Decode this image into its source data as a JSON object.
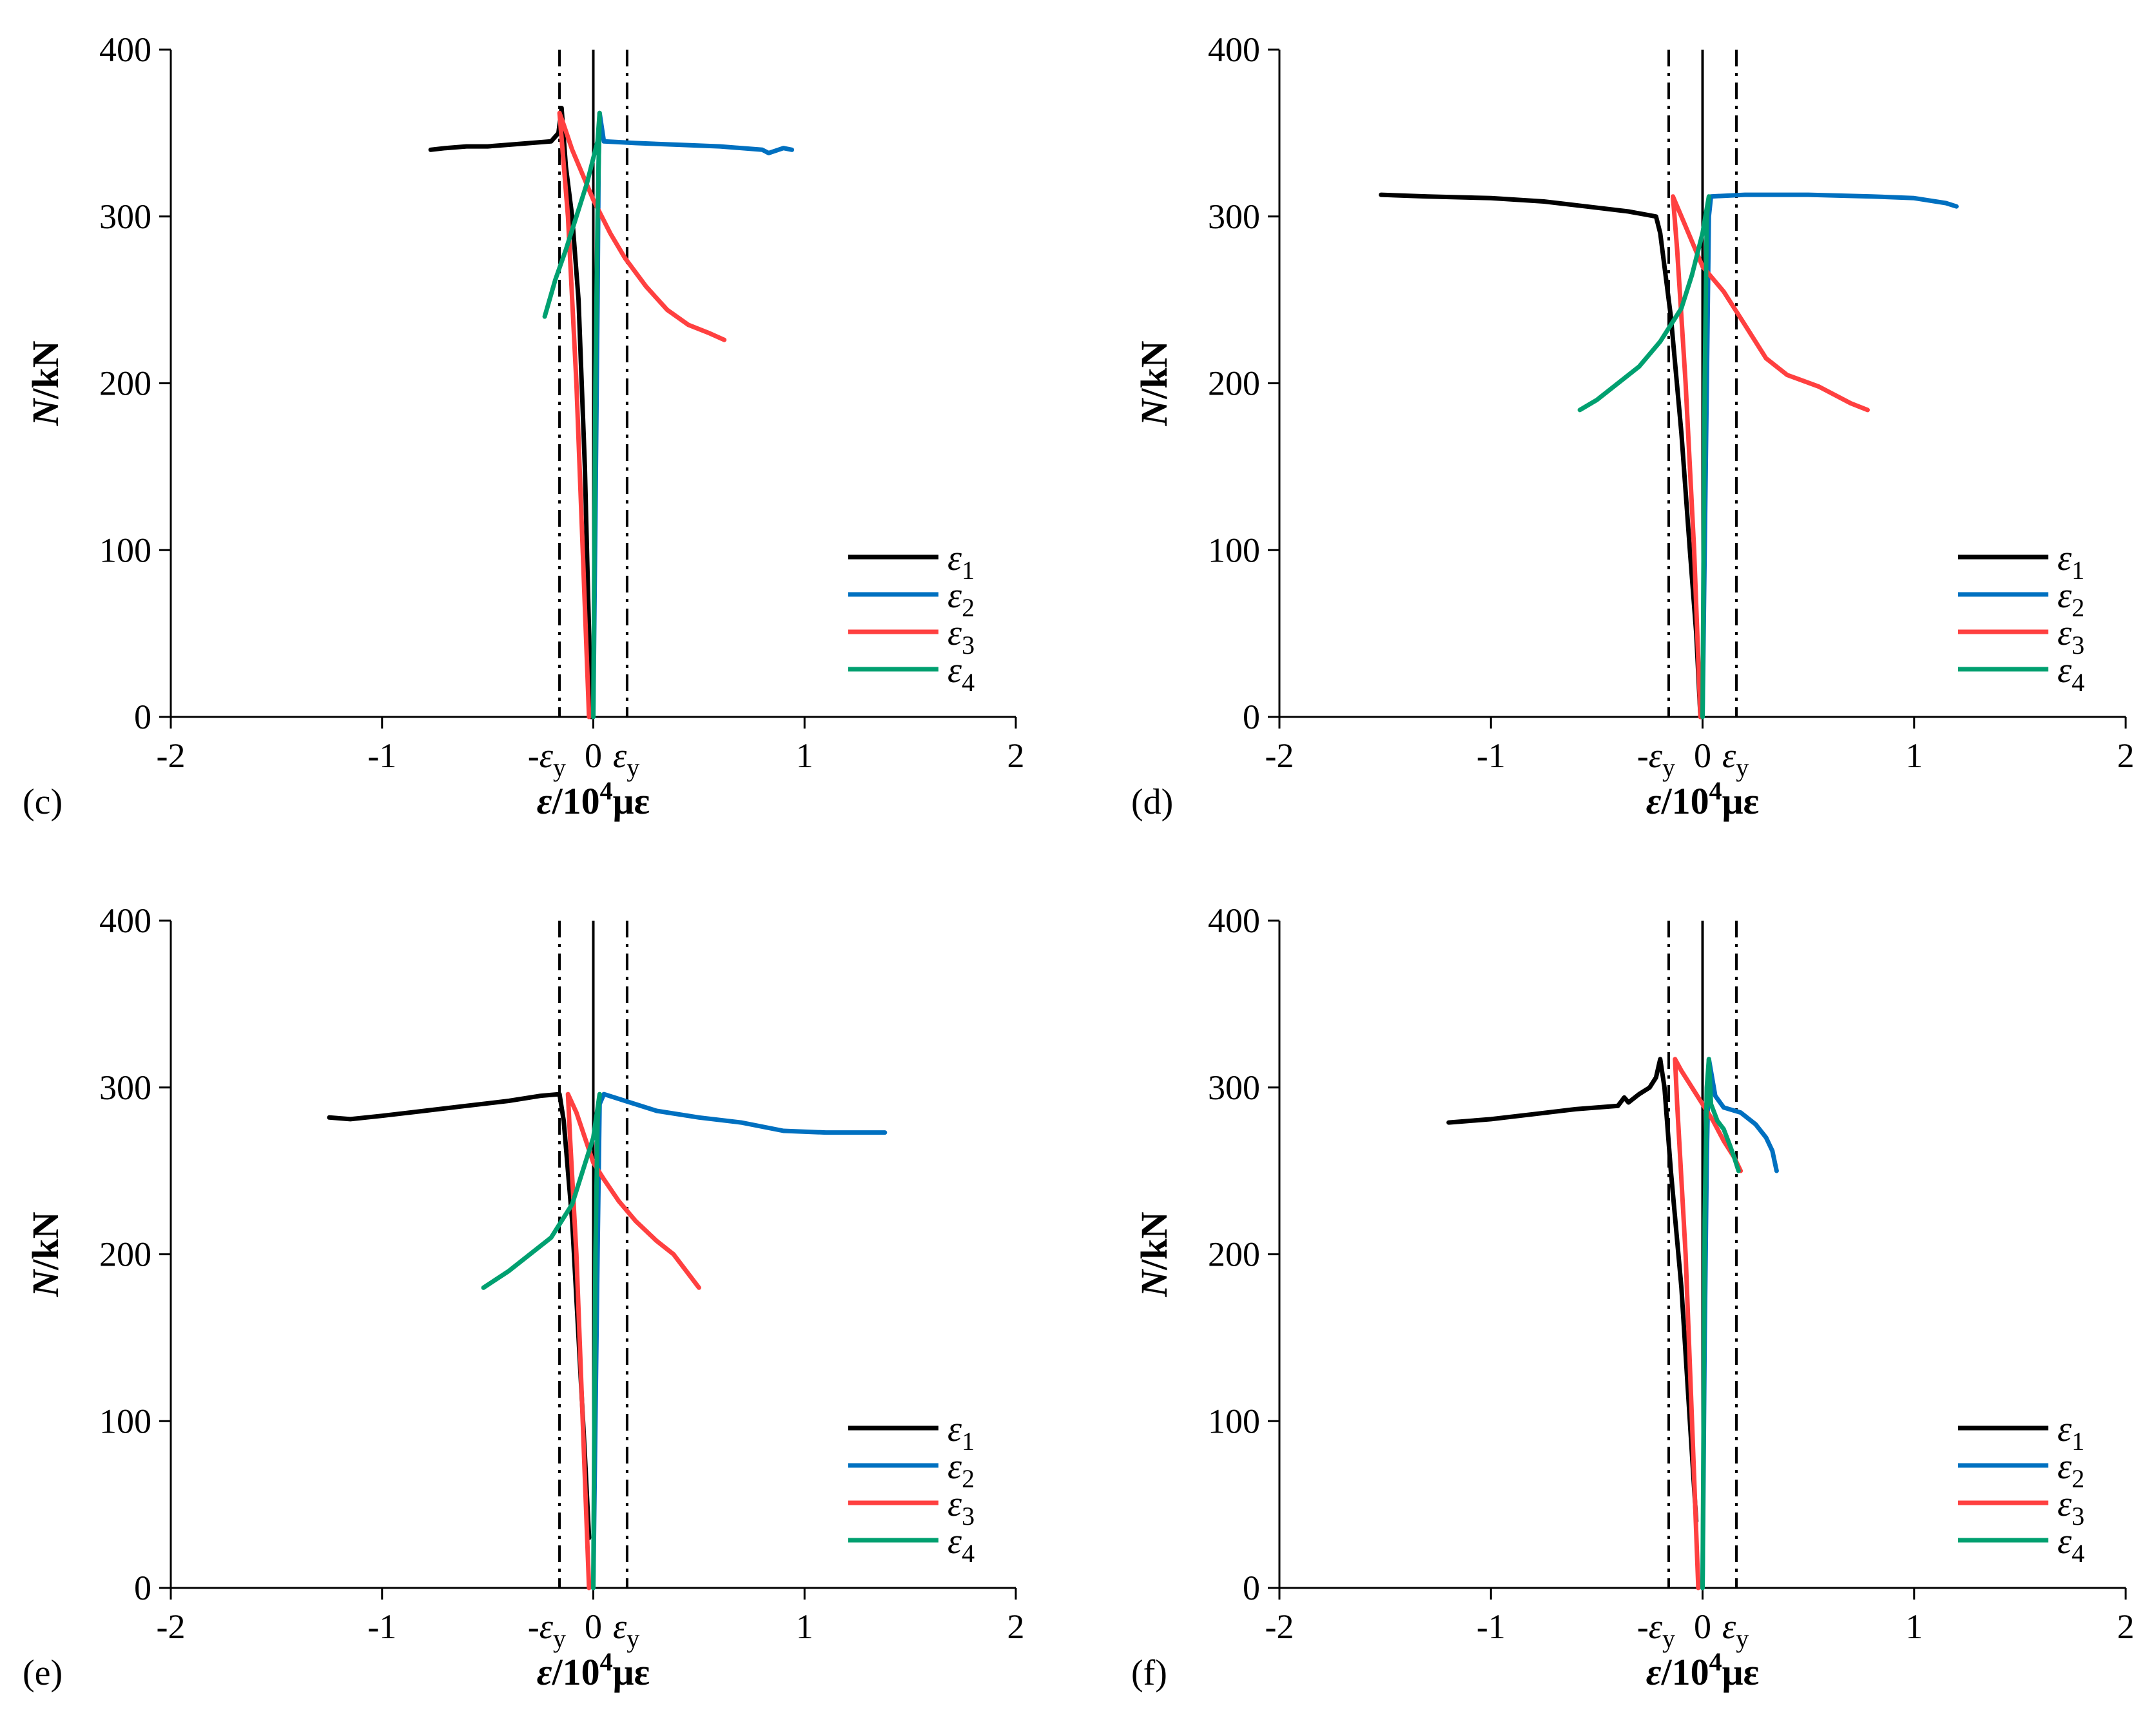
{
  "figure": {
    "panels": [
      "c",
      "d",
      "e",
      "f"
    ]
  },
  "chart_data": [
    {
      "type": "line",
      "panel_label": "(c)",
      "xlabel_symbol": "ε",
      "xlabel_unit": "/10",
      "xlabel_exp": "4",
      "xlabel_tail": "με",
      "ylabel_symbol": "N",
      "ylabel_unit": "/kN",
      "xlim": [
        -2,
        2
      ],
      "ylim": [
        0,
        400
      ],
      "xticks": [
        -2,
        -1,
        1,
        2
      ],
      "yticks": [
        0,
        100,
        200,
        300,
        400
      ],
      "zero_label": "0",
      "yield_strain": 0.16,
      "yield_labels": {
        "neg_prefix": "-",
        "sym": "ε",
        "sub": "y"
      },
      "series": [
        {
          "name": "ε1",
          "sym": "ε",
          "sub": "1",
          "color": "#000000",
          "points": [
            [
              -0.77,
              340
            ],
            [
              -0.7,
              341
            ],
            [
              -0.6,
              342
            ],
            [
              -0.5,
              342
            ],
            [
              -0.4,
              343
            ],
            [
              -0.3,
              344
            ],
            [
              -0.2,
              345
            ],
            [
              -0.165,
              350
            ],
            [
              -0.15,
              365
            ],
            [
              -0.13,
              330
            ],
            [
              -0.1,
              300
            ],
            [
              -0.07,
              250
            ],
            [
              -0.04,
              150
            ],
            [
              -0.02,
              50
            ],
            [
              -0.01,
              0
            ]
          ]
        },
        {
          "name": "ε2",
          "sym": "ε",
          "sub": "2",
          "color": "#0070C0",
          "points": [
            [
              0.0,
              0
            ],
            [
              0.01,
              120
            ],
            [
              0.02,
              250
            ],
            [
              0.025,
              330
            ],
            [
              0.03,
              362
            ],
            [
              0.05,
              345
            ],
            [
              0.2,
              344
            ],
            [
              0.4,
              343
            ],
            [
              0.6,
              342
            ],
            [
              0.8,
              340
            ],
            [
              0.83,
              338
            ],
            [
              0.9,
              341
            ],
            [
              0.94,
              340
            ]
          ]
        },
        {
          "name": "ε3",
          "sym": "ε",
          "sub": "3",
          "color": "#FF4040",
          "points": [
            [
              -0.02,
              0
            ],
            [
              -0.05,
              100
            ],
            [
              -0.08,
              200
            ],
            [
              -0.12,
              300
            ],
            [
              -0.16,
              362
            ],
            [
              -0.14,
              355
            ],
            [
              -0.1,
              340
            ],
            [
              -0.05,
              325
            ],
            [
              0.0,
              310
            ],
            [
              0.08,
              290
            ],
            [
              0.15,
              275
            ],
            [
              0.25,
              258
            ],
            [
              0.35,
              244
            ],
            [
              0.45,
              235
            ],
            [
              0.55,
              230
            ],
            [
              0.62,
              226
            ]
          ]
        },
        {
          "name": "ε4",
          "sym": "ε",
          "sub": "4",
          "color": "#00A070",
          "points": [
            [
              0.0,
              0
            ],
            [
              0.005,
              100
            ],
            [
              0.01,
              200
            ],
            [
              0.02,
              300
            ],
            [
              0.03,
              362
            ],
            [
              0.02,
              345
            ],
            [
              -0.03,
              320
            ],
            [
              -0.08,
              300
            ],
            [
              -0.13,
              280
            ],
            [
              -0.18,
              262
            ],
            [
              -0.23,
              240
            ]
          ]
        }
      ]
    },
    {
      "type": "line",
      "panel_label": "(d)",
      "xlabel_symbol": "ε",
      "xlabel_unit": "/10",
      "xlabel_exp": "4",
      "xlabel_tail": "με",
      "ylabel_symbol": "N",
      "ylabel_unit": "/kN",
      "xlim": [
        -2,
        2
      ],
      "ylim": [
        0,
        400
      ],
      "xticks": [
        -2,
        -1,
        1,
        2
      ],
      "yticks": [
        0,
        100,
        200,
        300,
        400
      ],
      "zero_label": "0",
      "yield_strain": 0.16,
      "yield_labels": {
        "neg_prefix": "-",
        "sym": "ε",
        "sub": "y"
      },
      "series": [
        {
          "name": "ε1",
          "sym": "ε",
          "sub": "1",
          "color": "#000000",
          "points": [
            [
              -1.52,
              313
            ],
            [
              -1.3,
              312
            ],
            [
              -1.0,
              311
            ],
            [
              -0.75,
              309
            ],
            [
              -0.55,
              306
            ],
            [
              -0.35,
              303
            ],
            [
              -0.22,
              300
            ],
            [
              -0.2,
              290
            ],
            [
              -0.15,
              240
            ],
            [
              -0.1,
              170
            ],
            [
              -0.06,
              100
            ],
            [
              -0.03,
              50
            ],
            [
              -0.01,
              0
            ]
          ]
        },
        {
          "name": "ε2",
          "sym": "ε",
          "sub": "2",
          "color": "#0070C0",
          "points": [
            [
              0.0,
              0
            ],
            [
              0.01,
              100
            ],
            [
              0.02,
              200
            ],
            [
              0.03,
              300
            ],
            [
              0.04,
              312
            ],
            [
              0.2,
              313
            ],
            [
              0.5,
              313
            ],
            [
              0.8,
              312
            ],
            [
              1.0,
              311
            ],
            [
              1.15,
              308
            ],
            [
              1.2,
              306
            ]
          ]
        },
        {
          "name": "ε3",
          "sym": "ε",
          "sub": "3",
          "color": "#FF4040",
          "points": [
            [
              -0.01,
              0
            ],
            [
              -0.04,
              100
            ],
            [
              -0.08,
              200
            ],
            [
              -0.12,
              280
            ],
            [
              -0.14,
              312
            ],
            [
              -0.1,
              300
            ],
            [
              -0.05,
              285
            ],
            [
              0.0,
              270
            ],
            [
              0.1,
              255
            ],
            [
              0.2,
              235
            ],
            [
              0.3,
              215
            ],
            [
              0.4,
              205
            ],
            [
              0.55,
              198
            ],
            [
              0.7,
              188
            ],
            [
              0.78,
              184
            ]
          ]
        },
        {
          "name": "ε4",
          "sym": "ε",
          "sub": "4",
          "color": "#00A070",
          "points": [
            [
              0.0,
              0
            ],
            [
              0.005,
              100
            ],
            [
              0.01,
              200
            ],
            [
              0.02,
              300
            ],
            [
              0.03,
              312
            ],
            [
              0.0,
              290
            ],
            [
              -0.05,
              265
            ],
            [
              -0.1,
              245
            ],
            [
              -0.2,
              225
            ],
            [
              -0.3,
              210
            ],
            [
              -0.4,
              200
            ],
            [
              -0.5,
              190
            ],
            [
              -0.58,
              184
            ]
          ]
        }
      ]
    },
    {
      "type": "line",
      "panel_label": "(e)",
      "xlabel_symbol": "ε",
      "xlabel_unit": "/10",
      "xlabel_exp": "4",
      "xlabel_tail": "με",
      "ylabel_symbol": "N",
      "ylabel_unit": "/kN",
      "xlim": [
        -2,
        2
      ],
      "ylim": [
        0,
        400
      ],
      "xticks": [
        -2,
        -1,
        1,
        2
      ],
      "yticks": [
        0,
        100,
        200,
        300,
        400
      ],
      "zero_label": "0",
      "yield_strain": 0.16,
      "yield_labels": {
        "neg_prefix": "-",
        "sym": "ε",
        "sub": "y"
      },
      "series": [
        {
          "name": "ε1",
          "sym": "ε",
          "sub": "1",
          "color": "#000000",
          "points": [
            [
              -1.25,
              282
            ],
            [
              -1.15,
              281
            ],
            [
              -1.0,
              283
            ],
            [
              -0.8,
              286
            ],
            [
              -0.6,
              289
            ],
            [
              -0.4,
              292
            ],
            [
              -0.25,
              295
            ],
            [
              -0.16,
              296
            ],
            [
              -0.14,
              280
            ],
            [
              -0.1,
              220
            ],
            [
              -0.07,
              150
            ],
            [
              -0.04,
              80
            ],
            [
              -0.02,
              30
            ]
          ]
        },
        {
          "name": "ε2",
          "sym": "ε",
          "sub": "2",
          "color": "#0070C0",
          "points": [
            [
              0.0,
              0
            ],
            [
              0.01,
              100
            ],
            [
              0.02,
              200
            ],
            [
              0.03,
              290
            ],
            [
              0.05,
              296
            ],
            [
              0.15,
              292
            ],
            [
              0.3,
              286
            ],
            [
              0.5,
              282
            ],
            [
              0.7,
              279
            ],
            [
              0.9,
              274
            ],
            [
              1.1,
              273
            ],
            [
              1.38,
              273
            ]
          ]
        },
        {
          "name": "ε3",
          "sym": "ε",
          "sub": "3",
          "color": "#FF4040",
          "points": [
            [
              -0.02,
              0
            ],
            [
              -0.05,
              100
            ],
            [
              -0.08,
              200
            ],
            [
              -0.11,
              270
            ],
            [
              -0.12,
              296
            ],
            [
              -0.08,
              285
            ],
            [
              -0.04,
              270
            ],
            [
              0.0,
              255
            ],
            [
              0.05,
              245
            ],
            [
              0.12,
              232
            ],
            [
              0.2,
              220
            ],
            [
              0.3,
              208
            ],
            [
              0.38,
              200
            ],
            [
              0.44,
              190
            ],
            [
              0.5,
              180
            ]
          ]
        },
        {
          "name": "ε4",
          "sym": "ε",
          "sub": "4",
          "color": "#00A070",
          "points": [
            [
              0.0,
              0
            ],
            [
              0.005,
              100
            ],
            [
              0.01,
              200
            ],
            [
              0.02,
              280
            ],
            [
              0.03,
              296
            ],
            [
              0.0,
              270
            ],
            [
              -0.05,
              250
            ],
            [
              -0.1,
              230
            ],
            [
              -0.2,
              210
            ],
            [
              -0.3,
              200
            ],
            [
              -0.4,
              190
            ],
            [
              -0.52,
              180
            ]
          ]
        }
      ]
    },
    {
      "type": "line",
      "panel_label": "(f)",
      "xlabel_symbol": "ε",
      "xlabel_unit": "/10",
      "xlabel_exp": "4",
      "xlabel_tail": "με",
      "ylabel_symbol": "N",
      "ylabel_unit": "/kN",
      "xlim": [
        -2,
        2
      ],
      "ylim": [
        0,
        400
      ],
      "xticks": [
        -2,
        -1,
        1,
        2
      ],
      "yticks": [
        0,
        100,
        200,
        300,
        400
      ],
      "zero_label": "0",
      "yield_strain": 0.16,
      "yield_labels": {
        "neg_prefix": "-",
        "sym": "ε",
        "sub": "y"
      },
      "series": [
        {
          "name": "ε1",
          "sym": "ε",
          "sub": "1",
          "color": "#000000",
          "points": [
            [
              -1.2,
              279
            ],
            [
              -1.0,
              281
            ],
            [
              -0.8,
              284
            ],
            [
              -0.6,
              287
            ],
            [
              -0.4,
              289
            ],
            [
              -0.37,
              294
            ],
            [
              -0.35,
              291
            ],
            [
              -0.3,
              296
            ],
            [
              -0.25,
              300
            ],
            [
              -0.22,
              306
            ],
            [
              -0.2,
              317
            ],
            [
              -0.18,
              300
            ],
            [
              -0.15,
              250
            ],
            [
              -0.1,
              180
            ],
            [
              -0.06,
              100
            ],
            [
              -0.03,
              40
            ]
          ]
        },
        {
          "name": "ε2",
          "sym": "ε",
          "sub": "2",
          "color": "#0070C0",
          "points": [
            [
              0.0,
              0
            ],
            [
              0.01,
              150
            ],
            [
              0.02,
              260
            ],
            [
              0.03,
              317
            ],
            [
              0.06,
              295
            ],
            [
              0.1,
              288
            ],
            [
              0.18,
              285
            ],
            [
              0.25,
              278
            ],
            [
              0.3,
              270
            ],
            [
              0.33,
              262
            ],
            [
              0.35,
              250
            ]
          ]
        },
        {
          "name": "ε3",
          "sym": "ε",
          "sub": "3",
          "color": "#FF4040",
          "points": [
            [
              -0.02,
              0
            ],
            [
              -0.05,
              100
            ],
            [
              -0.08,
              200
            ],
            [
              -0.12,
              290
            ],
            [
              -0.13,
              317
            ],
            [
              -0.1,
              310
            ],
            [
              -0.05,
              300
            ],
            [
              0.0,
              290
            ],
            [
              0.05,
              280
            ],
            [
              0.1,
              268
            ],
            [
              0.15,
              258
            ],
            [
              0.18,
              250
            ]
          ]
        },
        {
          "name": "ε4",
          "sym": "ε",
          "sub": "4",
          "color": "#00A070",
          "points": [
            [
              0.0,
              0
            ],
            [
              0.005,
              100
            ],
            [
              0.01,
              220
            ],
            [
              0.02,
              300
            ],
            [
              0.03,
              317
            ],
            [
              0.04,
              290
            ],
            [
              0.07,
              280
            ],
            [
              0.1,
              275
            ],
            [
              0.13,
              265
            ],
            [
              0.15,
              258
            ],
            [
              0.17,
              250
            ]
          ]
        }
      ]
    }
  ]
}
